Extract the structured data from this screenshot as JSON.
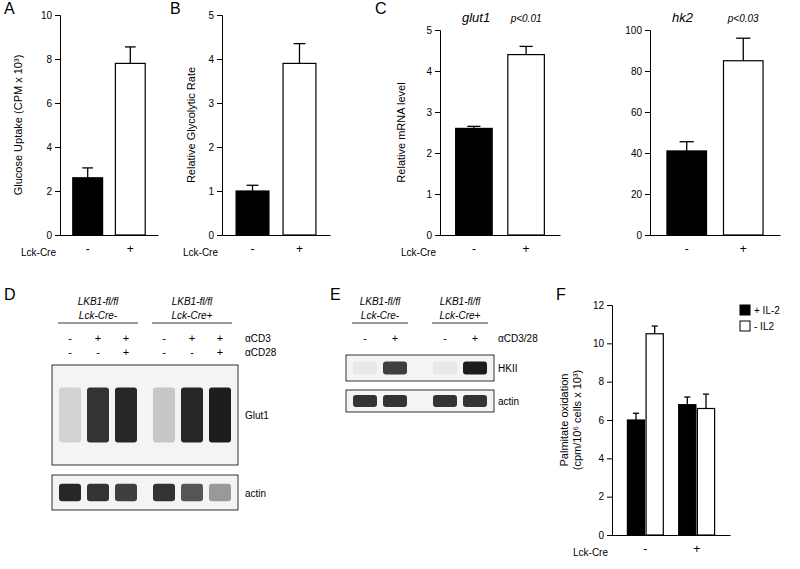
{
  "chart_data": [
    {
      "type": "bar",
      "panel": "A",
      "y_label": "Glucose Uptake (CPM x 10³)",
      "x_label": "Lck-Cre",
      "categories": [
        "-",
        "+"
      ],
      "values": [
        2.6,
        7.8
      ],
      "errors": [
        0.45,
        0.75
      ],
      "colors": [
        "#000000",
        "#ffffff"
      ],
      "ylim": [
        0,
        10
      ],
      "yticks": [
        0,
        2,
        4,
        6,
        8,
        10
      ]
    },
    {
      "type": "bar",
      "panel": "B",
      "y_label": "Relative Glycolytic Rate",
      "x_label": "Lck-Cre",
      "categories": [
        "-",
        "+"
      ],
      "values": [
        1.0,
        3.9
      ],
      "errors": [
        0.13,
        0.45
      ],
      "colors": [
        "#000000",
        "#ffffff"
      ],
      "ylim": [
        0,
        5
      ],
      "yticks": [
        0,
        1,
        2,
        3,
        4,
        5
      ]
    },
    {
      "type": "bar",
      "panel": "C",
      "title": "glut1",
      "annotations": [
        "p<0.01"
      ],
      "y_label": "Relative mRNA level",
      "x_label": "Lck-Cre",
      "categories": [
        "-",
        "+"
      ],
      "values": [
        2.6,
        4.4
      ],
      "errors": [
        0.05,
        0.2
      ],
      "colors": [
        "#000000",
        "#ffffff"
      ],
      "ylim": [
        0,
        5
      ],
      "yticks": [
        0,
        1,
        2,
        3,
        4,
        5
      ]
    },
    {
      "type": "bar",
      "title": "hk2",
      "annotations": [
        "p<0.03"
      ],
      "categories": [
        "-",
        "+"
      ],
      "values": [
        41,
        85
      ],
      "errors": [
        4.5,
        11
      ],
      "colors": [
        "#000000",
        "#ffffff"
      ],
      "ylim": [
        0,
        100
      ],
      "yticks": [
        0,
        20,
        40,
        60,
        80,
        100
      ]
    },
    {
      "type": "bar",
      "panel": "F",
      "y_label": [
        "Palmitate oxidation",
        "(cpm/10⁶ cells x 10³)"
      ],
      "x_label": "Lck-Cre",
      "categories": [
        "-",
        "+"
      ],
      "legend": "top-right",
      "series": [
        {
          "name": "+ IL-2",
          "color": "#000000",
          "values": [
            6.0,
            6.8
          ],
          "errors": [
            0.35,
            0.4
          ]
        },
        {
          "name": "- IL2",
          "color": "#ffffff",
          "values": [
            10.5,
            6.6
          ],
          "errors": [
            0.4,
            0.75
          ]
        }
      ],
      "ylim": [
        0,
        12
      ],
      "yticks": [
        0,
        2,
        4,
        6,
        8,
        10,
        12
      ]
    }
  ],
  "blots": [
    {
      "panel": "D",
      "groups": [
        {
          "lines": [
            "LKB1-fl/fl",
            "Lck-Cre-"
          ]
        },
        {
          "lines": [
            "LKB1-fl/fl",
            "Lck-Cre+"
          ]
        }
      ],
      "rows": [
        {
          "label": "αCD3",
          "marks": [
            "-",
            "+",
            "+",
            "-",
            "+",
            "+"
          ]
        },
        {
          "label": "αCD28",
          "marks": [
            "-",
            "-",
            "+",
            "-",
            "-",
            "+"
          ]
        }
      ],
      "bands": [
        {
          "label": "Glut1",
          "intensity": [
            0.15,
            0.85,
            0.9,
            0.2,
            0.9,
            0.95
          ]
        },
        {
          "label": "actin",
          "intensity": [
            0.9,
            0.85,
            0.8,
            0.85,
            0.7,
            0.4
          ]
        }
      ]
    },
    {
      "panel": "E",
      "groups": [
        {
          "lines": [
            "LKB1-fl/fl",
            "Lck-Cre-"
          ]
        },
        {
          "lines": [
            "LKB1-fl/fl",
            "Lck-Cre+"
          ]
        }
      ],
      "rows": [
        {
          "label": "αCD3/28",
          "marks": [
            "-",
            "+",
            "-",
            "+"
          ]
        }
      ],
      "bands": [
        {
          "label": "HKII",
          "intensity": [
            0.05,
            0.8,
            0.05,
            0.95
          ]
        },
        {
          "label": "actin",
          "intensity": [
            0.85,
            0.85,
            0.85,
            0.85
          ]
        }
      ]
    }
  ]
}
